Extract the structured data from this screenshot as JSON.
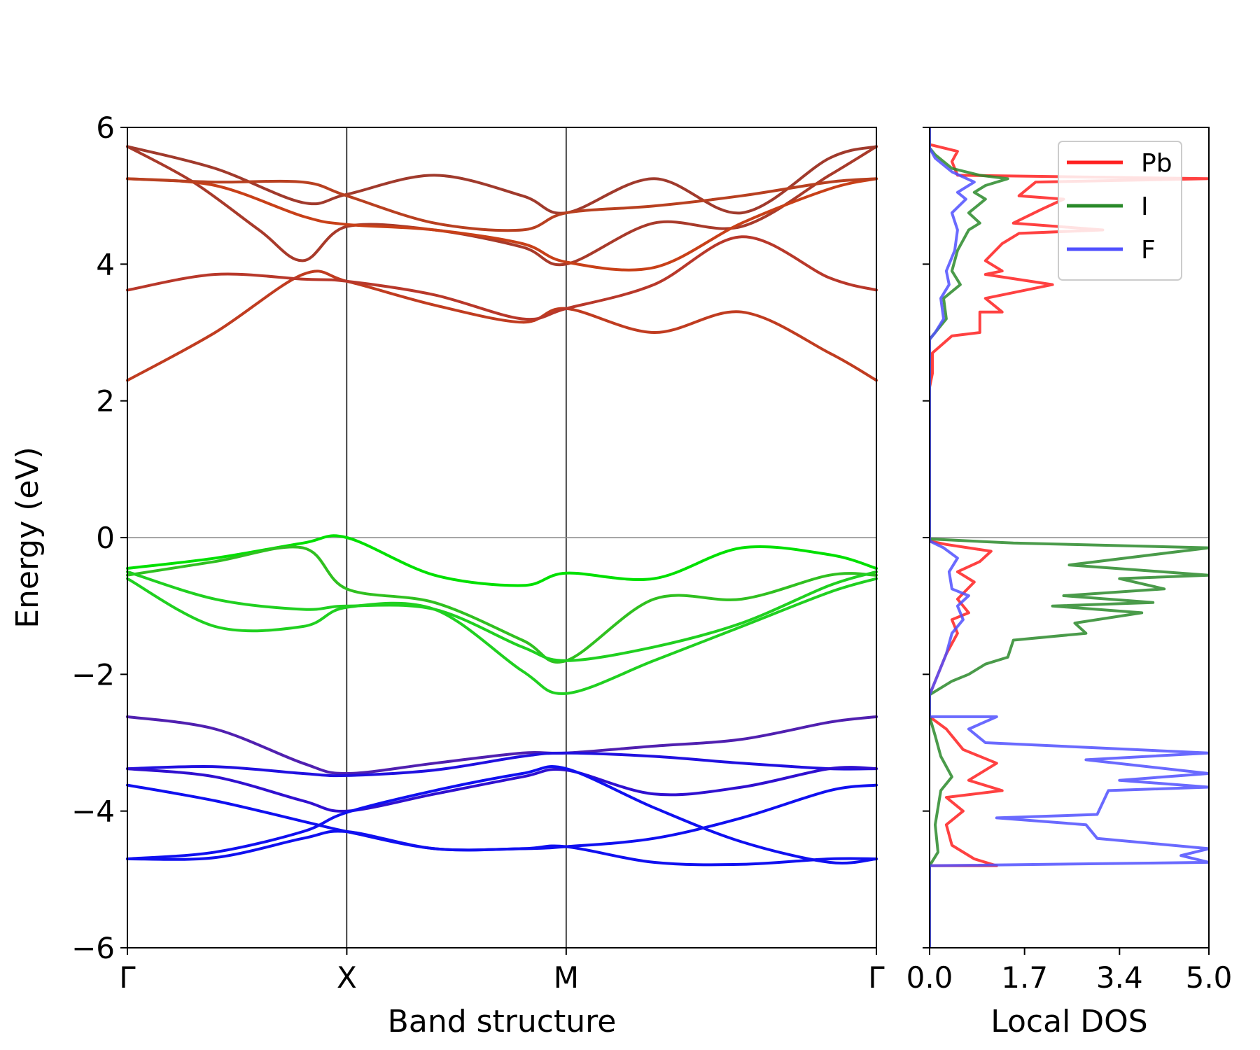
{
  "chart_data": [
    {
      "type": "line",
      "title": "",
      "xlabel": "Band structure",
      "ylabel": "Energy (eV)",
      "ylim": [
        -6,
        6
      ],
      "yticks": [
        6,
        4,
        2,
        0,
        -2,
        -4,
        -6
      ],
      "ytick_labels": [
        "6",
        "4",
        "2",
        "0",
        "−2",
        "−4",
        "−6"
      ],
      "kpoints": [
        {
          "label": "Γ",
          "x": 0.0
        },
        {
          "label": "X",
          "x": 1.0
        },
        {
          "label": "M",
          "x": 2.0
        },
        {
          "label": "Γ",
          "x": 3.414
        }
      ],
      "fermi_level": 0,
      "bands": [
        {
          "color": "#c03c20",
          "x": [
            0,
            0.4,
            0.8,
            1.0,
            1.4,
            1.8,
            2.0,
            2.4,
            2.8,
            3.2,
            3.414
          ],
          "y": [
            2.3,
            3.0,
            3.85,
            3.75,
            3.4,
            3.15,
            3.35,
            3.0,
            3.3,
            2.7,
            2.3
          ]
        },
        {
          "color": "#b8382a",
          "x": [
            0,
            0.4,
            0.8,
            1.0,
            1.4,
            1.8,
            2.0,
            2.4,
            2.8,
            3.2,
            3.414
          ],
          "y": [
            3.62,
            3.85,
            3.78,
            3.75,
            3.55,
            3.2,
            3.35,
            3.7,
            4.4,
            3.8,
            3.62
          ]
        },
        {
          "color": "#a83a2a",
          "x": [
            0,
            0.3,
            0.6,
            0.8,
            1.0,
            1.4,
            1.8,
            2.0,
            2.4,
            2.8,
            3.2,
            3.414
          ],
          "y": [
            5.72,
            5.2,
            4.5,
            4.05,
            4.55,
            4.5,
            4.25,
            4.0,
            4.6,
            4.55,
            5.3,
            5.72
          ]
        },
        {
          "color": "#a03a2c",
          "x": [
            0,
            0.4,
            0.8,
            1.0,
            1.4,
            1.8,
            2.0,
            2.4,
            2.8,
            3.2,
            3.414
          ],
          "y": [
            5.72,
            5.4,
            4.9,
            5.02,
            5.3,
            5.0,
            4.75,
            5.25,
            4.75,
            5.55,
            5.72
          ]
        },
        {
          "color": "#c84018",
          "x": [
            0,
            0.4,
            0.8,
            1.0,
            1.4,
            1.8,
            2.0,
            2.4,
            2.8,
            3.2,
            3.414
          ],
          "y": [
            5.25,
            5.15,
            4.7,
            4.58,
            4.5,
            4.3,
            4.03,
            3.95,
            4.6,
            5.1,
            5.25
          ]
        },
        {
          "color": "#b84020",
          "x": [
            0,
            0.4,
            0.8,
            1.0,
            1.4,
            1.8,
            2.0,
            2.4,
            2.8,
            3.2,
            3.414
          ],
          "y": [
            5.25,
            5.2,
            5.2,
            5.0,
            4.6,
            4.5,
            4.75,
            4.85,
            5.0,
            5.2,
            5.25
          ]
        },
        {
          "color": "#00e000",
          "x": [
            0,
            0.4,
            0.8,
            1.0,
            1.4,
            1.8,
            2.0,
            2.4,
            2.8,
            3.2,
            3.414
          ],
          "y": [
            -0.45,
            -0.3,
            -0.08,
            0.0,
            -0.55,
            -0.7,
            -0.52,
            -0.6,
            -0.15,
            -0.25,
            -0.45
          ]
        },
        {
          "color": "#30c020",
          "x": [
            0,
            0.4,
            0.8,
            1.0,
            1.4,
            1.8,
            2.0,
            2.4,
            2.8,
            3.2,
            3.414
          ],
          "y": [
            -0.55,
            -0.35,
            -0.15,
            -0.75,
            -0.95,
            -1.5,
            -1.8,
            -0.9,
            -0.9,
            -0.55,
            -0.55
          ]
        },
        {
          "color": "#20d020",
          "x": [
            0,
            0.4,
            0.8,
            1.0,
            1.4,
            1.8,
            2.0,
            2.4,
            2.8,
            3.2,
            3.414
          ],
          "y": [
            -0.5,
            -0.9,
            -1.05,
            -1.0,
            -1.05,
            -1.6,
            -1.8,
            -1.6,
            -1.25,
            -0.7,
            -0.5
          ]
        },
        {
          "color": "#20d020",
          "x": [
            0,
            0.4,
            0.8,
            1.0,
            1.4,
            1.8,
            2.0,
            2.4,
            2.8,
            3.2,
            3.414
          ],
          "y": [
            -0.6,
            -1.3,
            -1.3,
            -1.02,
            -1.05,
            -1.95,
            -2.28,
            -1.8,
            -1.3,
            -0.8,
            -0.6
          ]
        },
        {
          "color": "#5020b0",
          "x": [
            0,
            0.4,
            0.8,
            1.0,
            1.4,
            1.8,
            2.0,
            2.4,
            2.8,
            3.2,
            3.414
          ],
          "y": [
            -2.62,
            -2.8,
            -3.3,
            -3.45,
            -3.3,
            -3.15,
            -3.15,
            -3.05,
            -2.95,
            -2.7,
            -2.62
          ]
        },
        {
          "color": "#2010e0",
          "x": [
            0,
            0.4,
            0.8,
            1.0,
            1.4,
            1.8,
            2.0,
            2.4,
            2.8,
            3.2,
            3.414
          ],
          "y": [
            -3.38,
            -3.35,
            -3.45,
            -3.48,
            -3.4,
            -3.2,
            -3.15,
            -3.2,
            -3.3,
            -3.38,
            -3.38
          ]
        },
        {
          "color": "#3010d0",
          "x": [
            0,
            0.4,
            0.8,
            1.0,
            1.4,
            1.8,
            2.0,
            2.4,
            2.8,
            3.2,
            3.414
          ],
          "y": [
            -3.38,
            -3.5,
            -3.85,
            -4.0,
            -3.75,
            -3.5,
            -3.4,
            -3.75,
            -3.65,
            -3.38,
            -3.38
          ]
        },
        {
          "color": "#1010f0",
          "x": [
            0,
            0.4,
            0.8,
            1.0,
            1.4,
            1.8,
            2.0,
            2.4,
            2.8,
            3.2,
            3.414
          ],
          "y": [
            -3.62,
            -3.85,
            -4.15,
            -4.3,
            -4.55,
            -4.55,
            -4.52,
            -4.4,
            -4.1,
            -3.7,
            -3.62
          ]
        },
        {
          "color": "#1010f0",
          "x": [
            0,
            0.4,
            0.8,
            1.0,
            1.4,
            1.8,
            2.0,
            2.4,
            2.8,
            3.2,
            3.414
          ],
          "y": [
            -4.7,
            -4.6,
            -4.3,
            -4.02,
            -3.7,
            -3.45,
            -3.38,
            -3.95,
            -4.45,
            -4.75,
            -4.7
          ]
        },
        {
          "color": "#1010f0",
          "x": [
            0,
            0.4,
            0.8,
            1.0,
            1.4,
            1.8,
            2.0,
            2.4,
            2.8,
            3.2,
            3.414
          ],
          "y": [
            -4.7,
            -4.68,
            -4.4,
            -4.3,
            -4.55,
            -4.55,
            -4.52,
            -4.75,
            -4.78,
            -4.7,
            -4.7
          ]
        }
      ]
    },
    {
      "type": "line",
      "title": "",
      "xlabel": "Local DOS",
      "ylabel": "",
      "xlim": [
        0,
        5
      ],
      "ylim": [
        -6,
        6
      ],
      "xticks": [
        0.0,
        1.7,
        3.4,
        5.0
      ],
      "xtick_labels": [
        "0.0",
        "1.7",
        "3.4",
        "5.0"
      ],
      "legend_position": "top-right",
      "series": [
        {
          "name": "Pb",
          "color": "#ff2020",
          "points": [
            [
              0.0,
              -6.0
            ],
            [
              0.0,
              -4.8
            ],
            [
              0.5,
              -4.8
            ],
            [
              1.2,
              -4.8
            ],
            [
              0.8,
              -4.7
            ],
            [
              0.4,
              -4.5
            ],
            [
              0.3,
              -4.2
            ],
            [
              0.6,
              -4.0
            ],
            [
              0.3,
              -3.8
            ],
            [
              1.3,
              -3.7
            ],
            [
              0.7,
              -3.55
            ],
            [
              1.2,
              -3.3
            ],
            [
              0.6,
              -3.1
            ],
            [
              0.3,
              -2.8
            ],
            [
              0.0,
              -2.62
            ],
            [
              0.0,
              -2.3
            ],
            [
              0.15,
              -2.0
            ],
            [
              0.3,
              -1.7
            ],
            [
              0.5,
              -1.4
            ],
            [
              0.4,
              -1.2
            ],
            [
              0.7,
              -1.1
            ],
            [
              0.5,
              -0.9
            ],
            [
              0.8,
              -0.65
            ],
            [
              0.5,
              -0.5
            ],
            [
              0.9,
              -0.35
            ],
            [
              1.1,
              -0.2
            ],
            [
              0.3,
              -0.1
            ],
            [
              0.0,
              -0.05
            ],
            [
              0.0,
              2.2
            ],
            [
              0.05,
              2.4
            ],
            [
              0.05,
              2.7
            ],
            [
              0.4,
              2.95
            ],
            [
              0.9,
              3.0
            ],
            [
              0.9,
              3.3
            ],
            [
              1.3,
              3.3
            ],
            [
              1.0,
              3.5
            ],
            [
              2.2,
              3.7
            ],
            [
              1.0,
              3.85
            ],
            [
              1.3,
              3.9
            ],
            [
              1.0,
              4.05
            ],
            [
              1.3,
              4.3
            ],
            [
              1.6,
              4.45
            ],
            [
              3.1,
              4.5
            ],
            [
              1.5,
              4.6
            ],
            [
              2.0,
              4.8
            ],
            [
              2.4,
              4.95
            ],
            [
              1.6,
              5.0
            ],
            [
              1.9,
              5.2
            ],
            [
              5.0,
              5.25
            ],
            [
              0.5,
              5.3
            ],
            [
              0.4,
              5.5
            ],
            [
              0.5,
              5.65
            ],
            [
              0.0,
              5.75
            ],
            [
              0.0,
              6.0
            ]
          ]
        },
        {
          "name": "I",
          "color": "#2a8a2a",
          "points": [
            [
              0.0,
              -6.0
            ],
            [
              0.0,
              -4.8
            ],
            [
              0.15,
              -4.6
            ],
            [
              0.1,
              -4.2
            ],
            [
              0.2,
              -3.7
            ],
            [
              0.4,
              -3.5
            ],
            [
              0.2,
              -3.2
            ],
            [
              0.1,
              -2.9
            ],
            [
              0.0,
              -2.62
            ],
            [
              0.0,
              -2.3
            ],
            [
              0.4,
              -2.1
            ],
            [
              0.7,
              -2.0
            ],
            [
              1.0,
              -1.85
            ],
            [
              1.4,
              -1.75
            ],
            [
              1.5,
              -1.5
            ],
            [
              2.8,
              -1.4
            ],
            [
              2.6,
              -1.25
            ],
            [
              3.8,
              -1.1
            ],
            [
              2.2,
              -1.0
            ],
            [
              4.0,
              -0.95
            ],
            [
              2.4,
              -0.85
            ],
            [
              4.2,
              -0.75
            ],
            [
              3.4,
              -0.6
            ],
            [
              5.0,
              -0.55
            ],
            [
              2.5,
              -0.4
            ],
            [
              5.0,
              -0.15
            ],
            [
              1.5,
              -0.08
            ],
            [
              0.0,
              -0.02
            ],
            [
              0.0,
              2.9
            ],
            [
              0.1,
              3.0
            ],
            [
              0.3,
              3.2
            ],
            [
              0.25,
              3.5
            ],
            [
              0.55,
              3.7
            ],
            [
              0.4,
              3.9
            ],
            [
              0.5,
              4.2
            ],
            [
              0.7,
              4.5
            ],
            [
              0.9,
              4.6
            ],
            [
              0.7,
              4.75
            ],
            [
              1.0,
              4.95
            ],
            [
              0.8,
              5.05
            ],
            [
              1.0,
              5.15
            ],
            [
              1.4,
              5.25
            ],
            [
              0.9,
              5.3
            ],
            [
              0.4,
              5.4
            ],
            [
              0.1,
              5.6
            ],
            [
              0.0,
              5.7
            ],
            [
              0.0,
              6.0
            ]
          ]
        },
        {
          "name": "F",
          "color": "#5050ff",
          "points": [
            [
              0.0,
              -6.0
            ],
            [
              0.0,
              -4.8
            ],
            [
              5.0,
              -4.75
            ],
            [
              4.5,
              -4.65
            ],
            [
              5.0,
              -4.55
            ],
            [
              3.0,
              -4.4
            ],
            [
              2.8,
              -4.2
            ],
            [
              1.2,
              -4.1
            ],
            [
              3.0,
              -4.05
            ],
            [
              3.2,
              -3.7
            ],
            [
              5.0,
              -3.65
            ],
            [
              3.4,
              -3.55
            ],
            [
              5.0,
              -3.45
            ],
            [
              2.8,
              -3.25
            ],
            [
              5.0,
              -3.15
            ],
            [
              1.0,
              -3.0
            ],
            [
              0.7,
              -2.8
            ],
            [
              1.2,
              -2.62
            ],
            [
              0.0,
              -2.62
            ],
            [
              0.0,
              -2.3
            ],
            [
              0.15,
              -2.0
            ],
            [
              0.3,
              -1.7
            ],
            [
              0.4,
              -1.4
            ],
            [
              0.6,
              -1.2
            ],
            [
              0.5,
              -1.0
            ],
            [
              0.7,
              -0.85
            ],
            [
              0.4,
              -0.75
            ],
            [
              0.35,
              -0.5
            ],
            [
              0.5,
              -0.3
            ],
            [
              0.25,
              -0.15
            ],
            [
              0.0,
              -0.05
            ],
            [
              0.0,
              2.9
            ],
            [
              0.1,
              3.0
            ],
            [
              0.25,
              3.2
            ],
            [
              0.2,
              3.5
            ],
            [
              0.35,
              3.7
            ],
            [
              0.3,
              3.9
            ],
            [
              0.45,
              4.2
            ],
            [
              0.5,
              4.5
            ],
            [
              0.4,
              4.75
            ],
            [
              0.65,
              4.95
            ],
            [
              0.5,
              5.05
            ],
            [
              0.8,
              5.2
            ],
            [
              0.4,
              5.35
            ],
            [
              0.1,
              5.55
            ],
            [
              0.0,
              5.7
            ],
            [
              0.0,
              6.0
            ]
          ]
        }
      ],
      "legend": [
        {
          "name": "Pb",
          "color": "#ff2020"
        },
        {
          "name": "I",
          "color": "#2a8a2a"
        },
        {
          "name": "F",
          "color": "#5050ff"
        }
      ]
    }
  ]
}
